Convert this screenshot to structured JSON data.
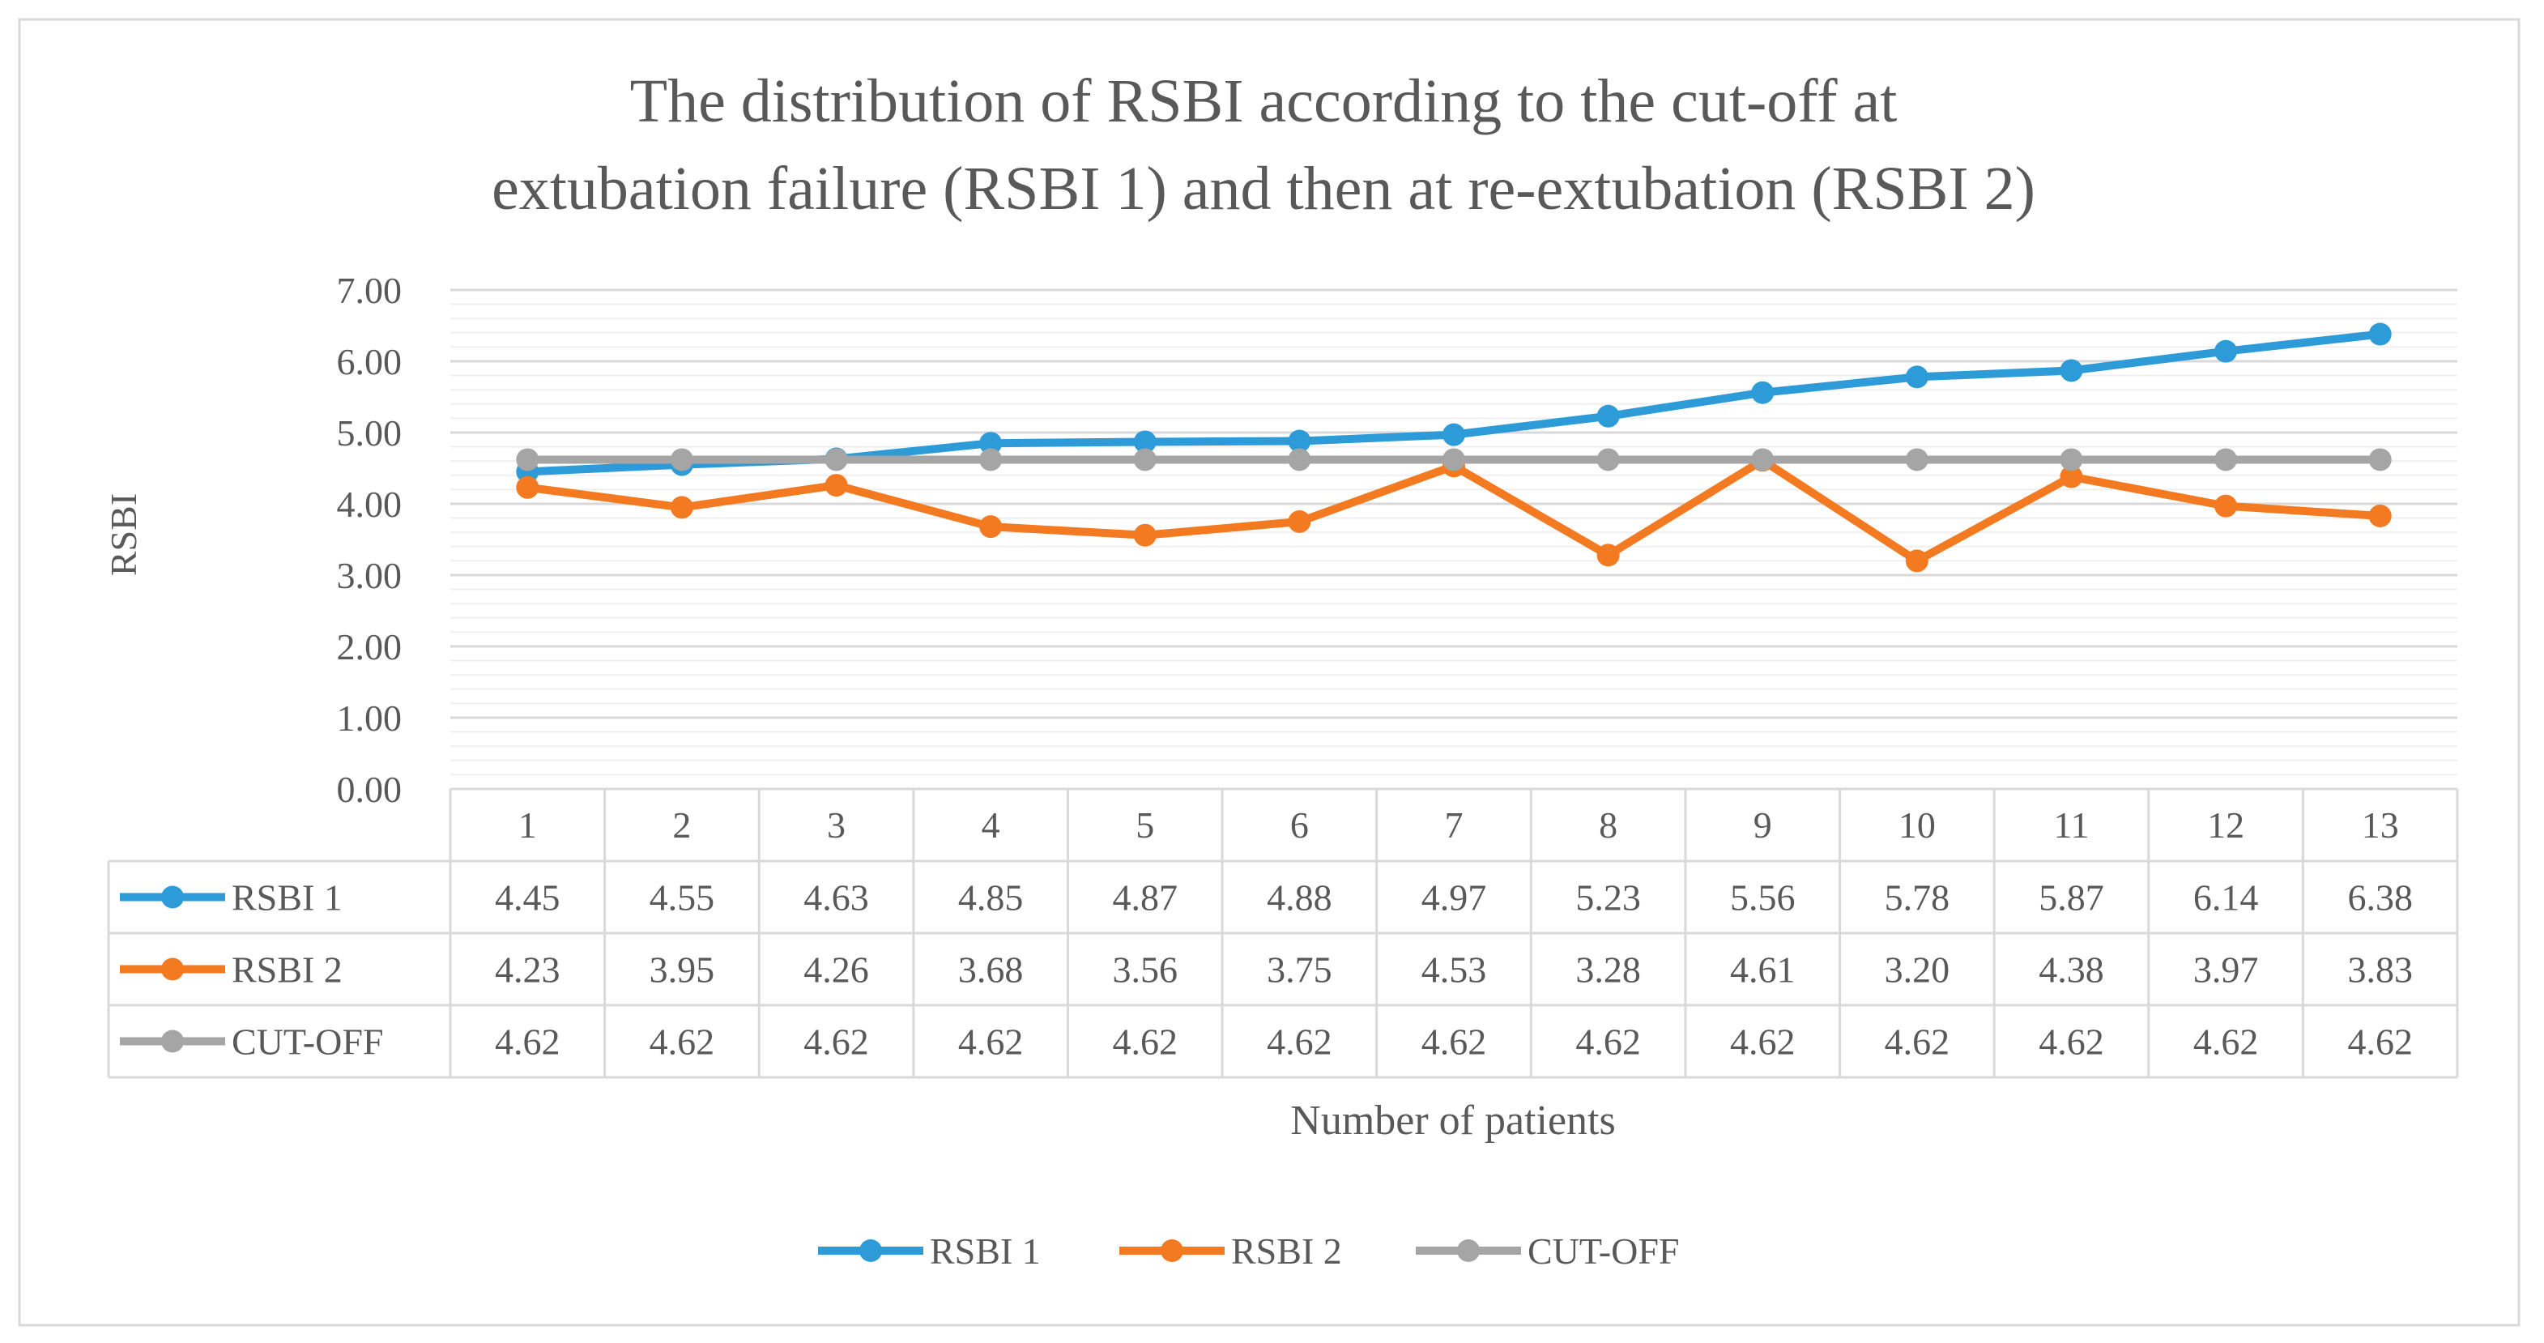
{
  "chart_data": {
    "type": "line",
    "title_lines": [
      "The distribution of RSBI according to the cut-off at",
      "extubation failure (RSBI 1) and then at re-extubation (RSBI 2)"
    ],
    "xlabel": "Number of patients",
    "ylabel": "RSBI",
    "ylim": [
      0,
      7
    ],
    "yticks": [
      "0.00",
      "1.00",
      "2.00",
      "3.00",
      "4.00",
      "5.00",
      "6.00",
      "7.00"
    ],
    "grid": true,
    "legend_position": "bottom",
    "categories": [
      "1",
      "2",
      "3",
      "4",
      "5",
      "6",
      "7",
      "8",
      "9",
      "10",
      "11",
      "12",
      "13"
    ],
    "series": [
      {
        "name": "RSBI 1",
        "color": "#2E9BD9",
        "values": [
          4.45,
          4.55,
          4.63,
          4.85,
          4.87,
          4.88,
          4.97,
          5.23,
          5.56,
          5.78,
          5.87,
          6.14,
          6.38
        ],
        "labels": [
          "4.45",
          "4.55",
          "4.63",
          "4.85",
          "4.87",
          "4.88",
          "4.97",
          "5.23",
          "5.56",
          "5.78",
          "5.87",
          "6.14",
          "6.38"
        ]
      },
      {
        "name": "RSBI 2",
        "color": "#F47A22",
        "values": [
          4.23,
          3.95,
          4.26,
          3.68,
          3.56,
          3.75,
          4.53,
          3.28,
          4.61,
          3.2,
          4.38,
          3.97,
          3.83
        ],
        "labels": [
          "4.23",
          "3.95",
          "4.26",
          "3.68",
          "3.56",
          "3.75",
          "4.53",
          "3.28",
          "4.61",
          "3.20",
          "4.38",
          "3.97",
          "3.83"
        ]
      },
      {
        "name": "CUT-OFF",
        "color": "#A5A5A5",
        "values": [
          4.62,
          4.62,
          4.62,
          4.62,
          4.62,
          4.62,
          4.62,
          4.62,
          4.62,
          4.62,
          4.62,
          4.62,
          4.62
        ],
        "labels": [
          "4.62",
          "4.62",
          "4.62",
          "4.62",
          "4.62",
          "4.62",
          "4.62",
          "4.62",
          "4.62",
          "4.62",
          "4.62",
          "4.62",
          "4.62"
        ]
      }
    ]
  }
}
